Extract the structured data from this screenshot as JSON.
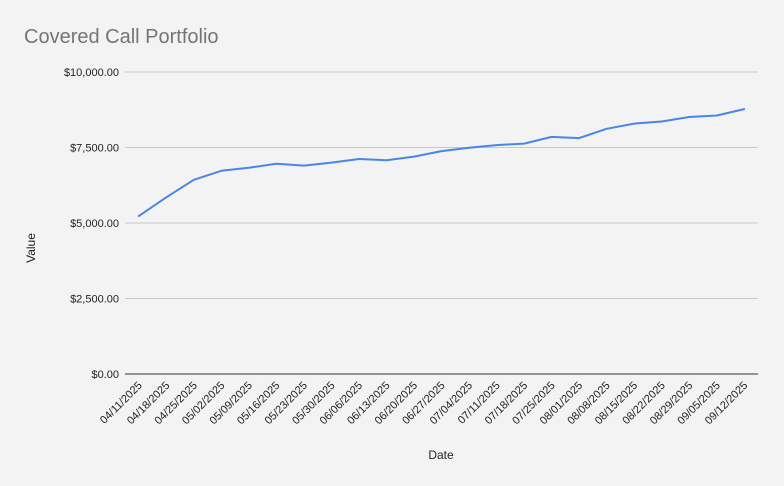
{
  "chart_data": {
    "type": "line",
    "title": "Covered Call Portfolio",
    "xlabel": "Date",
    "ylabel": "Value",
    "ylim": [
      0,
      10000
    ],
    "yticks": [
      "$0.00",
      "$2,500.00",
      "$5,000.00",
      "$7,500.00",
      "$10,000.00"
    ],
    "ytick_values": [
      0,
      2500,
      5000,
      7500,
      10000
    ],
    "grid": true,
    "legend": "none",
    "categories": [
      "04/11/2025",
      "04/18/2025",
      "04/25/2025",
      "05/02/2025",
      "05/09/2025",
      "05/16/2025",
      "05/23/2025",
      "05/30/2025",
      "06/06/2025",
      "06/13/2025",
      "06/20/2025",
      "06/27/2025",
      "07/04/2025",
      "07/11/2025",
      "07/18/2025",
      "07/25/2025",
      "08/01/2025",
      "08/08/2025",
      "08/15/2025",
      "08/22/2025",
      "08/29/2025",
      "09/05/2025",
      "09/12/2025"
    ],
    "series": [
      {
        "color": "#4a86e8",
        "values": [
          5230,
          5850,
          6430,
          6730,
          6830,
          6960,
          6900,
          7000,
          7120,
          7080,
          7200,
          7380,
          7490,
          7580,
          7630,
          7850,
          7810,
          8120,
          8290,
          8360,
          8510,
          8560,
          8770
        ]
      }
    ]
  }
}
